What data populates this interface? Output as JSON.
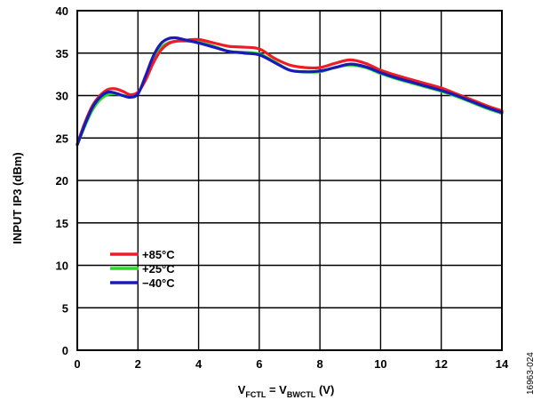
{
  "chart_data": {
    "type": "line",
    "title": "",
    "xlabel": {
      "main": "V",
      "sub1": "FCTL",
      "mid": " = V",
      "sub2": "BWCTL",
      "tail": " (V)"
    },
    "ylabel": "INPUT IP3 (dBm)",
    "xlim": [
      0,
      14
    ],
    "ylim": [
      0,
      40
    ],
    "xticks": [
      "0",
      "2",
      "4",
      "6",
      "8",
      "10",
      "12",
      "14"
    ],
    "yticks": [
      "0",
      "5",
      "10",
      "15",
      "20",
      "25",
      "30",
      "35",
      "40"
    ],
    "grid": true,
    "legend_placement": "lower-left",
    "figure_id": "16963-024",
    "series": [
      {
        "name": "+85°C",
        "color": "#ee1c25",
        "x": [
          0,
          0.25,
          0.5,
          0.75,
          1.0,
          1.25,
          1.5,
          1.75,
          2.0,
          2.25,
          2.5,
          2.75,
          3.0,
          3.25,
          3.5,
          4.0,
          4.5,
          5.0,
          5.5,
          6.0,
          6.5,
          7.0,
          7.5,
          8.0,
          8.5,
          9.0,
          9.5,
          10.0,
          10.5,
          11.0,
          11.5,
          12.0,
          12.5,
          13.0,
          13.5,
          14.0
        ],
        "y": [
          24.3,
          26.8,
          28.8,
          30.0,
          30.7,
          30.8,
          30.5,
          30.1,
          30.4,
          31.8,
          33.8,
          35.3,
          36.1,
          36.4,
          36.5,
          36.6,
          36.2,
          35.8,
          35.7,
          35.5,
          34.4,
          33.6,
          33.3,
          33.3,
          33.8,
          34.2,
          33.8,
          33.0,
          32.4,
          31.9,
          31.4,
          30.9,
          30.2,
          29.5,
          28.8,
          28.2
        ]
      },
      {
        "name": "+25°C",
        "color": "#2bd92b",
        "x": [
          0,
          0.25,
          0.5,
          0.75,
          1.0,
          1.25,
          1.5,
          1.75,
          2.0,
          2.25,
          2.5,
          2.75,
          3.0,
          3.25,
          3.5,
          4.0,
          4.5,
          5.0,
          5.5,
          6.0,
          6.5,
          7.0,
          7.5,
          8.0,
          8.5,
          9.0,
          9.5,
          10.0,
          10.5,
          11.0,
          11.5,
          12.0,
          12.5,
          13.0,
          13.5,
          14.0
        ],
        "y": [
          24.2,
          26.4,
          28.3,
          29.5,
          30.1,
          30.2,
          30.0,
          29.9,
          30.3,
          32.0,
          34.0,
          35.6,
          36.2,
          36.4,
          36.4,
          36.3,
          35.8,
          35.2,
          35.1,
          34.9,
          34.0,
          33.0,
          32.8,
          32.8,
          33.3,
          33.6,
          33.3,
          32.6,
          32.0,
          31.5,
          31.0,
          30.5,
          29.9,
          29.2,
          28.5,
          27.9
        ]
      },
      {
        "name": "−40°C",
        "color": "#1a1ab8",
        "x": [
          0,
          0.25,
          0.5,
          0.75,
          1.0,
          1.25,
          1.5,
          1.75,
          2.0,
          2.25,
          2.5,
          2.75,
          3.0,
          3.25,
          3.5,
          4.0,
          4.5,
          5.0,
          5.5,
          6.0,
          6.5,
          7.0,
          7.5,
          8.0,
          8.5,
          9.0,
          9.5,
          10.0,
          10.5,
          11.0,
          11.5,
          12.0,
          12.5,
          13.0,
          13.5,
          14.0
        ],
        "y": [
          24.2,
          26.6,
          28.6,
          29.8,
          30.4,
          30.3,
          30.0,
          29.8,
          30.2,
          32.3,
          34.6,
          36.1,
          36.7,
          36.8,
          36.6,
          36.2,
          35.7,
          35.2,
          35.0,
          34.8,
          33.9,
          33.0,
          32.8,
          32.9,
          33.3,
          33.7,
          33.4,
          32.7,
          32.1,
          31.6,
          31.1,
          30.6,
          30.0,
          29.3,
          28.6,
          28.0
        ]
      }
    ]
  }
}
